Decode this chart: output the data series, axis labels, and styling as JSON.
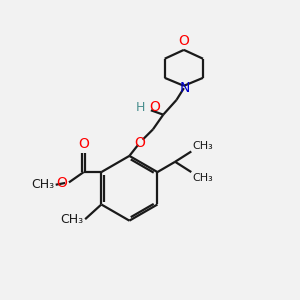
{
  "bg_color": "#f2f2f2",
  "line_color": "#1a1a1a",
  "o_color": "#ff0000",
  "n_color": "#0000cc",
  "oh_color": "#4a8f8f",
  "bond_lw": 1.6,
  "font_size": 9,
  "figsize": [
    3.0,
    3.0
  ],
  "dpi": 100,
  "xlim": [
    0,
    10
  ],
  "ylim": [
    0,
    10
  ]
}
